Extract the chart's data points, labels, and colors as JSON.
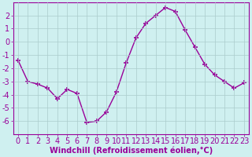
{
  "x": [
    0,
    1,
    2,
    3,
    4,
    5,
    6,
    7,
    8,
    9,
    10,
    11,
    12,
    13,
    14,
    15,
    16,
    17,
    18,
    19,
    20,
    21,
    22,
    23
  ],
  "y": [
    -1.4,
    -3.0,
    -3.2,
    -3.5,
    -4.3,
    -3.6,
    -3.9,
    -6.1,
    -6.0,
    -5.3,
    -3.8,
    -1.6,
    0.3,
    1.4,
    2.0,
    2.6,
    2.3,
    0.9,
    -0.4,
    -1.7,
    -2.5,
    -3.0,
    -3.5,
    -3.1
  ],
  "line_color": "#990099",
  "marker": "+",
  "markersize": 4,
  "linewidth": 1.0,
  "bg_color": "#cff0f0",
  "grid_color": "#aacccc",
  "xlabel": "Windchill (Refroidissement éolien,°C)",
  "xlim": [
    -0.5,
    23.5
  ],
  "ylim": [
    -7,
    3
  ],
  "yticks": [
    -6,
    -5,
    -4,
    -3,
    -2,
    -1,
    0,
    1,
    2
  ],
  "xticks": [
    0,
    1,
    2,
    3,
    4,
    5,
    6,
    7,
    8,
    9,
    10,
    11,
    12,
    13,
    14,
    15,
    16,
    17,
    18,
    19,
    20,
    21,
    22,
    23
  ],
  "tick_color": "#990099",
  "label_color": "#990099",
  "xlabel_fontsize": 7.0,
  "tick_fontsize": 7.0,
  "spine_color": "#990099"
}
